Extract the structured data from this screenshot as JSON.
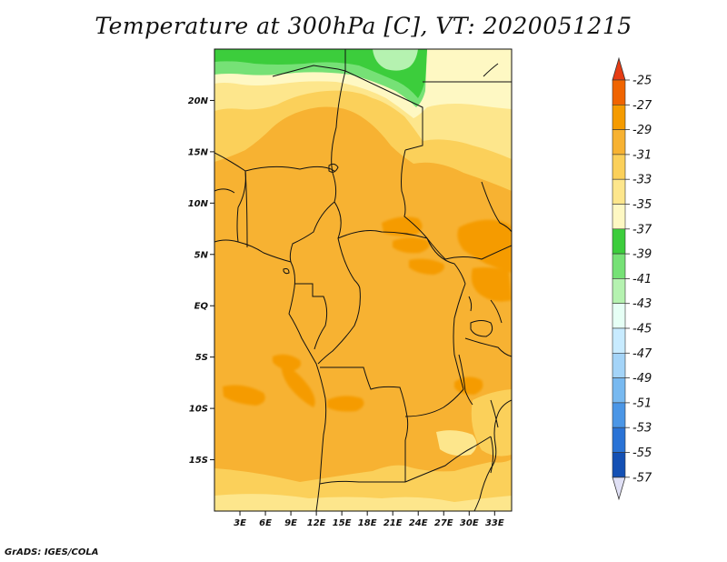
{
  "title": "Temperature at 300hPa [C], VT: 2020051215",
  "footer": "GrADS: IGES/COLA",
  "map": {
    "lon_range": [
      0,
      35
    ],
    "lat_range": [
      -20,
      25
    ],
    "lat_ticks": [
      {
        "lat": 20,
        "label": "20N"
      },
      {
        "lat": 15,
        "label": "15N"
      },
      {
        "lat": 10,
        "label": "10N"
      },
      {
        "lat": 5,
        "label": "5N"
      },
      {
        "lat": 0,
        "label": "EQ"
      },
      {
        "lat": -5,
        "label": "5S"
      },
      {
        "lat": -10,
        "label": "10S"
      },
      {
        "lat": -15,
        "label": "15S"
      }
    ],
    "lon_ticks": [
      {
        "lon": 3,
        "label": "3E"
      },
      {
        "lon": 6,
        "label": "6E"
      },
      {
        "lon": 9,
        "label": "9E"
      },
      {
        "lon": 12,
        "label": "12E"
      },
      {
        "lon": 15,
        "label": "15E"
      },
      {
        "lon": 18,
        "label": "18E"
      },
      {
        "lon": 21,
        "label": "21E"
      },
      {
        "lon": 24,
        "label": "24E"
      },
      {
        "lon": 27,
        "label": "27E"
      },
      {
        "lon": 30,
        "label": "30E"
      },
      {
        "lon": 33,
        "label": "33E"
      }
    ]
  },
  "colorbar": {
    "levels": [
      {
        "label": "-25",
        "color": "#f06400"
      },
      {
        "label": "-27",
        "color": "#f59b00"
      },
      {
        "label": "-29",
        "color": "#f7b232"
      },
      {
        "label": "-31",
        "color": "#fbd05a"
      },
      {
        "label": "-33",
        "color": "#fde68c"
      },
      {
        "label": "-35",
        "color": "#fef8c3"
      },
      {
        "label": "-37",
        "color": "#3ccd3c"
      },
      {
        "label": "-39",
        "color": "#76e176"
      },
      {
        "label": "-41",
        "color": "#b5f2b0"
      },
      {
        "label": "-43",
        "color": "#e6fff5"
      },
      {
        "label": "-45",
        "color": "#c8ebff"
      },
      {
        "label": "-47",
        "color": "#a4d4f8"
      },
      {
        "label": "-49",
        "color": "#78b9f0"
      },
      {
        "label": "-51",
        "color": "#4b96e6"
      },
      {
        "label": "-53",
        "color": "#2a73d6"
      },
      {
        "label": "-55",
        "color": "#1450b4"
      },
      {
        "label": "-57",
        "color": "#0f1a78"
      }
    ],
    "top_color": "#e63c14",
    "bottom_color": "#e0e0f5"
  }
}
